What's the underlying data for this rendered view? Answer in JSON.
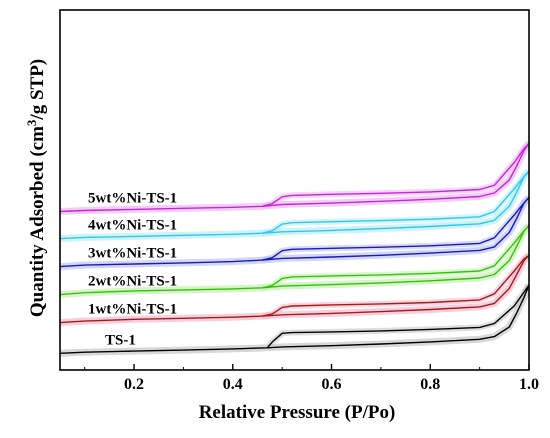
{
  "chart_data": {
    "type": "line",
    "title": "",
    "xlabel": "Relative Pressure (P/Po)",
    "ylabel_parts": {
      "main": "Quantity Adsorbed (cm",
      "sup": "3",
      "tail": "/g STP)"
    },
    "xlim": [
      0.05,
      1.0
    ],
    "xticks": [
      0.2,
      0.4,
      0.6,
      0.8,
      1.0
    ],
    "xtick_labels": [
      "0.2",
      "0.4",
      "0.6",
      "0.8",
      "1.0"
    ],
    "y_ticks_visible": false,
    "grid": false,
    "legend": "inline labels",
    "ylim": [
      0,
      100
    ],
    "series": [
      {
        "name": "TS-1",
        "color": "#000000",
        "shadow": "#c8c8c8",
        "adsorption": [
          [
            0.05,
            1.0
          ],
          [
            0.1,
            1.6
          ],
          [
            0.2,
            2.2
          ],
          [
            0.3,
            2.8
          ],
          [
            0.4,
            3.5
          ],
          [
            0.47,
            4.1
          ],
          [
            0.5,
            4.6
          ],
          [
            0.6,
            5.3
          ],
          [
            0.7,
            6.3
          ],
          [
            0.8,
            7.5
          ],
          [
            0.9,
            9.0
          ],
          [
            0.93,
            10.5
          ],
          [
            0.96,
            16
          ],
          [
            0.975,
            24
          ],
          [
            0.99,
            33
          ],
          [
            1.0,
            40
          ]
        ],
        "desorption": [
          [
            1.0,
            40
          ],
          [
            0.99,
            36
          ],
          [
            0.97,
            28
          ],
          [
            0.93,
            18
          ],
          [
            0.9,
            15.8
          ],
          [
            0.8,
            14.6
          ],
          [
            0.7,
            13.8
          ],
          [
            0.6,
            13.2
          ],
          [
            0.52,
            12.8
          ],
          [
            0.5,
            12.4
          ],
          [
            0.48,
            7.5
          ],
          [
            0.47,
            4.1
          ]
        ]
      },
      {
        "name": "1wt%Ni-TS-1",
        "color": "#a02010",
        "shadow": "#f4b8d4",
        "adsorption": [
          [
            0.05,
            18.5
          ],
          [
            0.1,
            19.4
          ],
          [
            0.2,
            20.4
          ],
          [
            0.3,
            21.0
          ],
          [
            0.4,
            21.6
          ],
          [
            0.46,
            22.2
          ],
          [
            0.5,
            23.0
          ],
          [
            0.6,
            23.8
          ],
          [
            0.7,
            24.8
          ],
          [
            0.8,
            26.0
          ],
          [
            0.9,
            27.5
          ],
          [
            0.93,
            29.5
          ],
          [
            0.96,
            38
          ],
          [
            0.975,
            46
          ],
          [
            0.99,
            54
          ],
          [
            1.0,
            57
          ]
        ],
        "desorption": [
          [
            1.0,
            57
          ],
          [
            0.99,
            55
          ],
          [
            0.97,
            48
          ],
          [
            0.93,
            35
          ],
          [
            0.9,
            31.5
          ],
          [
            0.8,
            30.0
          ],
          [
            0.7,
            29.2
          ],
          [
            0.6,
            28.6
          ],
          [
            0.52,
            28.0
          ],
          [
            0.5,
            27.2
          ],
          [
            0.48,
            23.5
          ],
          [
            0.46,
            22.2
          ]
        ]
      },
      {
        "name": "2wt%Ni-TS-1",
        "color": "#38c010",
        "shadow": "#c4f0b0",
        "adsorption": [
          [
            0.05,
            34.5
          ],
          [
            0.1,
            35.6
          ],
          [
            0.2,
            36.6
          ],
          [
            0.3,
            37.2
          ],
          [
            0.4,
            37.8
          ],
          [
            0.46,
            38.4
          ],
          [
            0.5,
            39.4
          ],
          [
            0.6,
            40.2
          ],
          [
            0.7,
            41.2
          ],
          [
            0.8,
            42.4
          ],
          [
            0.9,
            44.0
          ],
          [
            0.93,
            46.0
          ],
          [
            0.96,
            54
          ],
          [
            0.975,
            62
          ],
          [
            0.99,
            71
          ],
          [
            1.0,
            74
          ]
        ],
        "desorption": [
          [
            1.0,
            74
          ],
          [
            0.99,
            71
          ],
          [
            0.97,
            64
          ],
          [
            0.93,
            51
          ],
          [
            0.9,
            48.0
          ],
          [
            0.8,
            46.6
          ],
          [
            0.7,
            45.8
          ],
          [
            0.6,
            45.2
          ],
          [
            0.52,
            44.6
          ],
          [
            0.5,
            43.8
          ],
          [
            0.48,
            39.8
          ],
          [
            0.46,
            38.4
          ]
        ]
      },
      {
        "name": "3wt%Ni-TS-1",
        "color": "#1a1ab8",
        "shadow": "#c0c4f4",
        "adsorption": [
          [
            0.05,
            50.5
          ],
          [
            0.1,
            51.4
          ],
          [
            0.2,
            52.0
          ],
          [
            0.3,
            52.6
          ],
          [
            0.4,
            53.4
          ],
          [
            0.46,
            54.2
          ],
          [
            0.5,
            55.2
          ],
          [
            0.6,
            56.0
          ],
          [
            0.7,
            57.0
          ],
          [
            0.8,
            58.2
          ],
          [
            0.9,
            59.8
          ],
          [
            0.93,
            61.8
          ],
          [
            0.96,
            70
          ],
          [
            0.975,
            78
          ],
          [
            0.99,
            87
          ],
          [
            1.0,
            90
          ]
        ],
        "desorption": [
          [
            1.0,
            90
          ],
          [
            0.99,
            87
          ],
          [
            0.97,
            80
          ],
          [
            0.93,
            67
          ],
          [
            0.9,
            63.8
          ],
          [
            0.8,
            62.4
          ],
          [
            0.7,
            61.6
          ],
          [
            0.6,
            61.0
          ],
          [
            0.52,
            60.4
          ],
          [
            0.5,
            59.6
          ],
          [
            0.48,
            55.6
          ],
          [
            0.46,
            54.2
          ]
        ]
      },
      {
        "name": "4wt%Ni-TS-1",
        "color": "#30c8e8",
        "shadow": "#b8ecf8",
        "adsorption": [
          [
            0.05,
            66.5
          ],
          [
            0.1,
            67.2
          ],
          [
            0.2,
            67.8
          ],
          [
            0.3,
            68.4
          ],
          [
            0.4,
            69.0
          ],
          [
            0.46,
            69.6
          ],
          [
            0.5,
            70.4
          ],
          [
            0.6,
            71.2
          ],
          [
            0.7,
            72.2
          ],
          [
            0.8,
            73.4
          ],
          [
            0.9,
            75.0
          ],
          [
            0.93,
            77.0
          ],
          [
            0.96,
            85
          ],
          [
            0.975,
            93
          ],
          [
            0.99,
            102
          ],
          [
            1.0,
            105
          ]
        ],
        "desorption": [
          [
            1.0,
            105
          ],
          [
            0.99,
            102
          ],
          [
            0.97,
            95
          ],
          [
            0.93,
            82
          ],
          [
            0.9,
            79.0
          ],
          [
            0.8,
            77.6
          ],
          [
            0.7,
            76.8
          ],
          [
            0.6,
            76.2
          ],
          [
            0.52,
            75.6
          ],
          [
            0.5,
            74.8
          ],
          [
            0.48,
            71.0
          ],
          [
            0.46,
            69.6
          ]
        ]
      },
      {
        "name": "5wt%Ni-TS-1",
        "color": "#c028d8",
        "shadow": "#f0b8f4",
        "adsorption": [
          [
            0.05,
            82.0
          ],
          [
            0.1,
            82.6
          ],
          [
            0.2,
            83.2
          ],
          [
            0.3,
            83.8
          ],
          [
            0.4,
            84.4
          ],
          [
            0.46,
            85.0
          ],
          [
            0.5,
            86.0
          ],
          [
            0.6,
            86.8
          ],
          [
            0.7,
            87.8
          ],
          [
            0.8,
            89.0
          ],
          [
            0.9,
            90.6
          ],
          [
            0.93,
            92.6
          ],
          [
            0.96,
            100
          ],
          [
            0.975,
            108
          ],
          [
            0.99,
            117
          ],
          [
            1.0,
            121
          ]
        ],
        "desorption": [
          [
            1.0,
            121
          ],
          [
            0.99,
            118
          ],
          [
            0.97,
            110
          ],
          [
            0.93,
            97
          ],
          [
            0.9,
            94.6
          ],
          [
            0.8,
            93.2
          ],
          [
            0.7,
            92.4
          ],
          [
            0.6,
            91.8
          ],
          [
            0.52,
            91.2
          ],
          [
            0.5,
            90.4
          ],
          [
            0.48,
            86.6
          ],
          [
            0.46,
            85.0
          ]
        ]
      }
    ],
    "label_positions_note": "series labels sit just above the left end of each curve"
  }
}
